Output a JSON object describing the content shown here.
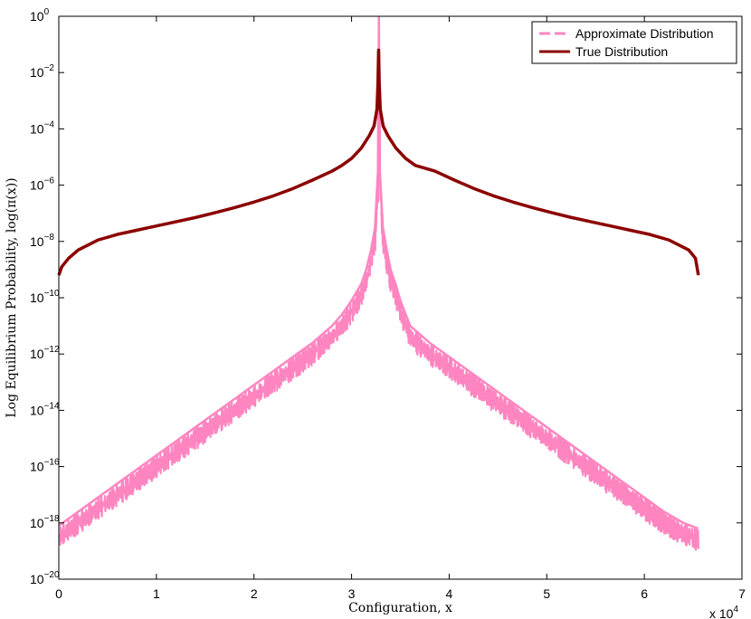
{
  "chart_data": {
    "type": "line",
    "title": "",
    "xlabel": "Configuration, x",
    "ylabel": "Log Equilibrium Probability, log(π(x))",
    "x_multiplier_label": "x 10",
    "x_multiplier_exp": "4",
    "x_scale_factor": 10000,
    "xlim": [
      0,
      70000
    ],
    "ylim_log10": [
      -20,
      0
    ],
    "yscale": "log",
    "x_ticks": [
      0,
      1,
      2,
      3,
      4,
      5,
      6,
      7
    ],
    "y_ticks": [
      {
        "base": "10",
        "exp": "0",
        "value_log10": 0
      },
      {
        "base": "10",
        "exp": "−2",
        "value_log10": -2
      },
      {
        "base": "10",
        "exp": "−4",
        "value_log10": -4
      },
      {
        "base": "10",
        "exp": "−6",
        "value_log10": -6
      },
      {
        "base": "10",
        "exp": "−8",
        "value_log10": -8
      },
      {
        "base": "10",
        "exp": "−10",
        "value_log10": -10
      },
      {
        "base": "10",
        "exp": "−12",
        "value_log10": -12
      },
      {
        "base": "10",
        "exp": "−14",
        "value_log10": -14
      },
      {
        "base": "10",
        "exp": "−16",
        "value_log10": -16
      },
      {
        "base": "10",
        "exp": "−18",
        "value_log10": -18
      },
      {
        "base": "10",
        "exp": "−20",
        "value_log10": -20
      }
    ],
    "grid": false,
    "legend_position": "top-right",
    "series": [
      {
        "name": "Approximate Distribution",
        "color": "#ff85c0",
        "style": "dashed-band",
        "x": [
          0,
          2000,
          4000,
          6000,
          8000,
          10000,
          12000,
          14000,
          16000,
          18000,
          20000,
          22000,
          24000,
          26000,
          28000,
          29000,
          30000,
          31000,
          31500,
          32000,
          32400,
          32700,
          32800,
          32900,
          33200,
          33600,
          34000,
          34500,
          35000,
          36000,
          38000,
          40000,
          42000,
          44000,
          46000,
          48000,
          50000,
          52000,
          54000,
          56000,
          58000,
          60000,
          62000,
          64000,
          65500
        ],
        "y_log10_low": [
          -18.9,
          -18.4,
          -17.9,
          -17.4,
          -16.9,
          -16.4,
          -15.9,
          -15.4,
          -14.9,
          -14.4,
          -13.9,
          -13.4,
          -12.9,
          -12.4,
          -11.8,
          -11.4,
          -10.9,
          -10.3,
          -9.8,
          -9.1,
          -8.3,
          -6.5,
          -1.5,
          -6.5,
          -8.3,
          -9.1,
          -9.8,
          -10.3,
          -10.9,
          -11.8,
          -12.4,
          -12.9,
          -13.4,
          -13.9,
          -14.4,
          -14.9,
          -15.4,
          -15.9,
          -16.4,
          -16.9,
          -17.4,
          -17.9,
          -18.4,
          -18.8,
          -19.0
        ],
        "y_log10_high": [
          -18.1,
          -17.6,
          -17.1,
          -16.6,
          -16.1,
          -15.6,
          -15.1,
          -14.6,
          -14.1,
          -13.6,
          -13.1,
          -12.6,
          -12.1,
          -11.6,
          -11.0,
          -10.6,
          -10.1,
          -9.5,
          -9.0,
          -8.3,
          -7.5,
          -5.5,
          0,
          -5.5,
          -7.5,
          -8.3,
          -9.0,
          -9.5,
          -10.1,
          -11.0,
          -11.6,
          -12.1,
          -12.6,
          -13.1,
          -13.6,
          -14.1,
          -14.6,
          -15.1,
          -15.6,
          -16.1,
          -16.6,
          -17.1,
          -17.6,
          -18.0,
          -18.2
        ]
      },
      {
        "name": "True Distribution",
        "color": "#8b0000",
        "style": "solid",
        "x": [
          0,
          300,
          1000,
          2000,
          4000,
          6000,
          8000,
          10000,
          12000,
          14000,
          16000,
          18000,
          20000,
          22000,
          24000,
          26000,
          28000,
          29000,
          30000,
          31000,
          31800,
          32300,
          32600,
          32700,
          32768,
          32836,
          32936,
          33236,
          33736,
          34536,
          35536,
          36536,
          38536,
          40536,
          42536,
          44536,
          46536,
          48536,
          50536,
          52536,
          54536,
          56536,
          58536,
          60536,
          62536,
          64536,
          65236,
          65536
        ],
        "y_log10": [
          -9.2,
          -8.9,
          -8.6,
          -8.3,
          -7.95,
          -7.75,
          -7.6,
          -7.45,
          -7.3,
          -7.15,
          -6.98,
          -6.8,
          -6.6,
          -6.38,
          -6.12,
          -5.82,
          -5.5,
          -5.3,
          -5.05,
          -4.68,
          -4.25,
          -3.9,
          -3.3,
          -2.4,
          -1.2,
          -2.4,
          -3.3,
          -3.9,
          -4.25,
          -4.68,
          -5.05,
          -5.3,
          -5.5,
          -5.82,
          -6.12,
          -6.38,
          -6.6,
          -6.8,
          -6.98,
          -7.15,
          -7.3,
          -7.45,
          -7.6,
          -7.75,
          -7.95,
          -8.3,
          -8.6,
          -9.2
        ]
      }
    ]
  }
}
